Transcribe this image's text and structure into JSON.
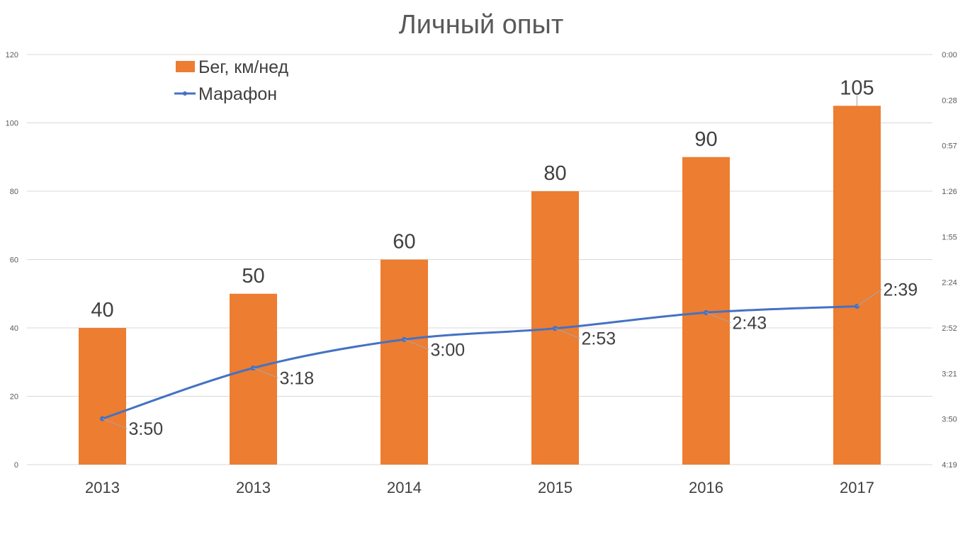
{
  "chart_data": {
    "type": "bar",
    "title": "Личный опыт",
    "categories": [
      "2013",
      "2013",
      "2014",
      "2015",
      "2016",
      "2017"
    ],
    "series": [
      {
        "name": "Бег, км/нед",
        "type": "bar",
        "axis": "left",
        "color": "#ED7D31",
        "values": [
          40,
          50,
          60,
          80,
          90,
          105
        ],
        "labels": [
          "40",
          "50",
          "60",
          "80",
          "90",
          "105"
        ]
      },
      {
        "name": "Марафон",
        "type": "line",
        "axis": "right",
        "color": "#4472C4",
        "values": [
          "3:50",
          "3:18",
          "3:00",
          "2:53",
          "2:43",
          "2:39"
        ]
      }
    ],
    "y_left": {
      "ylim": [
        0,
        120
      ],
      "ticks": [
        "0",
        "20",
        "40",
        "60",
        "80",
        "100",
        "120"
      ]
    },
    "y_right": {
      "ylim": [
        "4:19",
        "0:00"
      ],
      "reversed": true,
      "ticks": [
        "0:00",
        "0:28",
        "0:57",
        "1:26",
        "1:55",
        "2:24",
        "2:52",
        "3:21",
        "3:50",
        "4:19"
      ]
    },
    "legend_position": "top-left",
    "grid": true
  }
}
